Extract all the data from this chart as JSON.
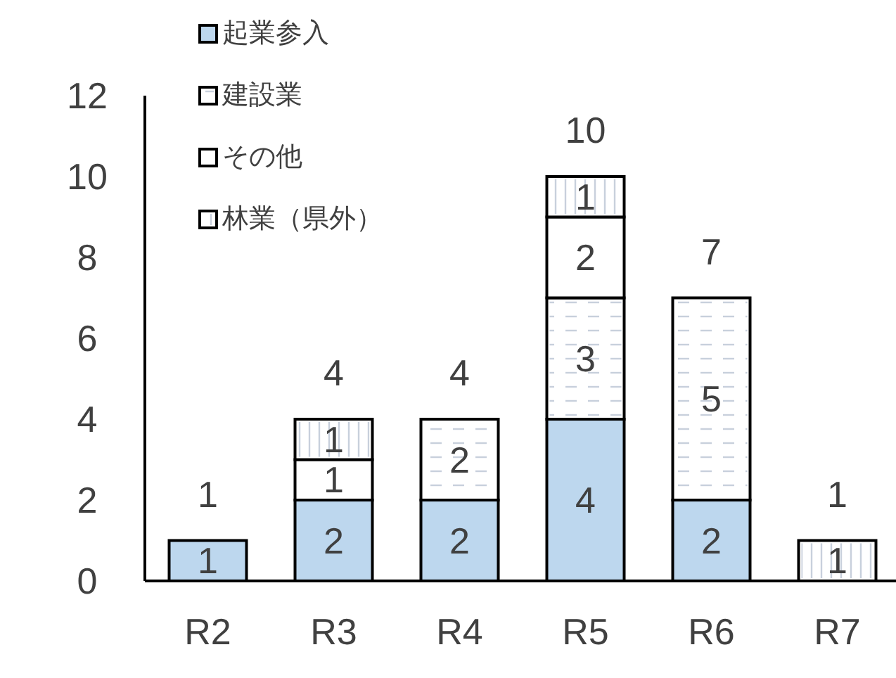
{
  "chart_data": {
    "type": "bar",
    "stacked": true,
    "categories": [
      "R2",
      "R3",
      "R4",
      "R5",
      "R6",
      "R7"
    ],
    "series": [
      {
        "name": "起業参入",
        "color": "#bdd7ee",
        "values": [
          1,
          2,
          2,
          4,
          2,
          0
        ],
        "value_labels": [
          "1",
          "2",
          "2",
          "4",
          "2",
          null
        ]
      },
      {
        "name": "建設業",
        "color": "#ffffff",
        "values": [
          0,
          0,
          2,
          3,
          5,
          0
        ],
        "value_labels": [
          null,
          null,
          "2",
          "3",
          "5",
          null
        ]
      },
      {
        "name": "その他",
        "color": "#ffffff",
        "values": [
          0,
          1,
          0,
          2,
          0,
          0
        ],
        "value_labels": [
          null,
          "1",
          null,
          "2",
          null,
          null
        ]
      },
      {
        "name": "林業（県外）",
        "color": "#ffffff",
        "values": [
          0,
          1,
          0,
          1,
          0,
          1
        ],
        "value_labels": [
          null,
          "1",
          null,
          "1",
          null,
          "1"
        ]
      }
    ],
    "totals": [
      "1",
      "4",
      "4",
      "10",
      "7",
      "1"
    ],
    "ylim": [
      0,
      12
    ],
    "yticks": [
      0,
      2,
      4,
      6,
      8,
      10,
      12
    ],
    "grid": false,
    "legend": "top left"
  }
}
